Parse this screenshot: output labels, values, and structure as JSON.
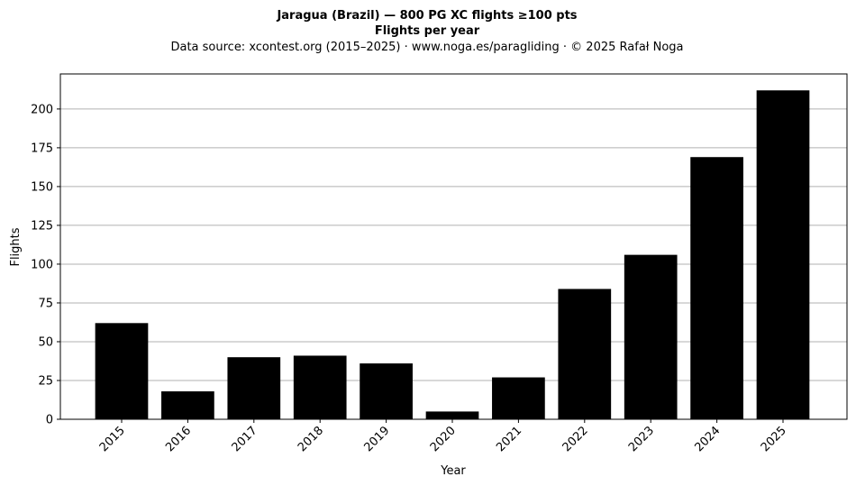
{
  "chart_data": {
    "type": "bar",
    "title": "Jaragua (Brazil)  —  800 PG XC flights ≥100 pts",
    "subtitle": "Flights per year",
    "source": "Data source: xcontest.org (2015–2025)  ·  www.noga.es/paragliding  ·  © 2025 Rafał Noga",
    "xlabel": "Year",
    "ylabel": "Flights",
    "categories": [
      "2015",
      "2016",
      "2017",
      "2018",
      "2019",
      "2020",
      "2021",
      "2022",
      "2023",
      "2024",
      "2025"
    ],
    "values": [
      62,
      18,
      40,
      41,
      36,
      5,
      27,
      84,
      106,
      169,
      212
    ],
    "ylim": [
      0,
      222.6
    ],
    "yticks": [
      0,
      25,
      50,
      75,
      100,
      125,
      150,
      175,
      200
    ],
    "grid": "horizontal",
    "bar_color": "#000000",
    "grid_color": "#b0b0b0"
  }
}
